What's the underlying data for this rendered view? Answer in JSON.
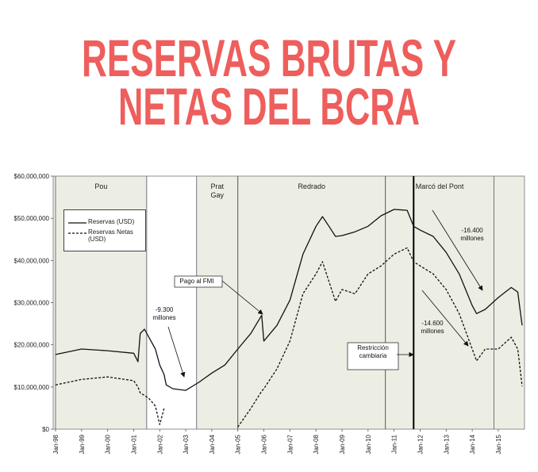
{
  "chart_data": {
    "type": "line",
    "title": [
      "RESERVAS BRUTAS Y",
      "NETAS DEL BCRA"
    ],
    "title_color": "#ee5e5c",
    "x": [
      "Jan-98",
      "Jan-99",
      "Jan-00",
      "Jan-01",
      "Mar-01",
      "Apr-01",
      "Jun-01",
      "Aug-01",
      "Nov-01",
      "Jan-02",
      "Mar-02",
      "Apr-02",
      "Jul-02",
      "Jan-03",
      "Jul-03",
      "Jan-04",
      "Jul-04",
      "Jan-05",
      "Jul-05",
      "Dec-05",
      "Jan-06",
      "Jul-06",
      "Jan-07",
      "Jul-07",
      "Jan-08",
      "Apr-08",
      "Jul-08",
      "Oct-08",
      "Jan-09",
      "Jul-09",
      "Jan-10",
      "Jul-10",
      "Jan-11",
      "Jul-11",
      "Oct-11",
      "Jan-12",
      "Jul-12",
      "Jan-13",
      "Jul-13",
      "Jan-14",
      "Mar-14",
      "Jul-14",
      "Jan-15",
      "Jul-15",
      "Oct-15",
      "Dec-15"
    ],
    "series": [
      {
        "name": "Reservas (USD)",
        "color": "#111111",
        "style": "solid",
        "values": [
          17700000,
          19000000,
          18600000,
          18000000,
          16000000,
          22700000,
          23700000,
          21800000,
          19000000,
          15200000,
          13000000,
          10500000,
          9600000,
          9200000,
          11100000,
          13300000,
          15200000,
          19000000,
          22700000,
          27000000,
          20900000,
          24600000,
          30600000,
          41500000,
          48100000,
          50400000,
          48100000,
          45700000,
          45900000,
          46800000,
          48100000,
          50600000,
          52100000,
          51900000,
          48100000,
          47200000,
          45700000,
          41900000,
          36800000,
          29300000,
          27400000,
          28400000,
          31200000,
          33600000,
          32500000,
          24600000
        ]
      },
      {
        "name": "Reservas Netas (USD)",
        "color": "#111111",
        "style": "dashed",
        "values": [
          10500000,
          11800000,
          12400000,
          11500000,
          10000000,
          8600000,
          8000000,
          7300000,
          5500000,
          1100000,
          4900000,
          null,
          null,
          null,
          null,
          null,
          null,
          500000,
          4900000,
          9000000,
          9600000,
          14300000,
          20900000,
          32100000,
          36800000,
          39700000,
          35000000,
          30300000,
          33100000,
          32100000,
          36800000,
          38700000,
          41500000,
          43000000,
          39700000,
          38700000,
          36800000,
          33100000,
          27400000,
          19000000,
          16200000,
          19000000,
          19000000,
          21800000,
          19000000,
          10200000
        ]
      }
    ],
    "xlim": [
      "Jan-98",
      "Dec-15"
    ],
    "xticks": [
      "Jan-98",
      "Jan-99",
      "Jan-00",
      "Jan-01",
      "Jan-02",
      "Jan-03",
      "Jan-04",
      "Jan-05",
      "Jan-06",
      "Jan-07",
      "Jan-08",
      "Jan-09",
      "Jan-10",
      "Jan-11",
      "Jan-12",
      "Jan-13",
      "Jan-14",
      "Jan-15"
    ],
    "ylim": [
      0,
      60000000
    ],
    "yticks": [
      {
        "value": 0,
        "label": "$0"
      },
      {
        "value": 10000000,
        "label": "$10,000,000"
      },
      {
        "value": 20000000,
        "label": "$20,000,000"
      },
      {
        "value": 30000000,
        "label": "$30,000,000"
      },
      {
        "value": 40000000,
        "label": "$40,000,000"
      },
      {
        "value": 50000000,
        "label": "$50,000,000"
      },
      {
        "value": 60000000,
        "label": "$60,000,000"
      }
    ],
    "periods": [
      {
        "name": [
          "Pou"
        ],
        "start": "Jan-98",
        "end": "Jul-01"
      },
      {
        "name": [
          "Prat",
          "Gay"
        ],
        "start": "Jun-03",
        "end": "Jan-05"
      },
      {
        "name": [
          "Redrado"
        ],
        "start": "Jan-05",
        "end": "Sep-10"
      },
      {
        "name": [
          "Marcó del Pont"
        ],
        "start": "Sep-10",
        "end": "Nov-14"
      }
    ],
    "annotations": [
      {
        "lines": [
          "-9.300",
          "millones"
        ]
      },
      {
        "lines": [
          "Pago al FMI"
        ],
        "boxed": true
      },
      {
        "lines": [
          "-16.400",
          "millones"
        ]
      },
      {
        "lines": [
          "-14.600",
          "millones"
        ]
      },
      {
        "lines": [
          "Restricción",
          "cambiaria"
        ],
        "boxed": true,
        "date": "Oct-11"
      }
    ]
  }
}
